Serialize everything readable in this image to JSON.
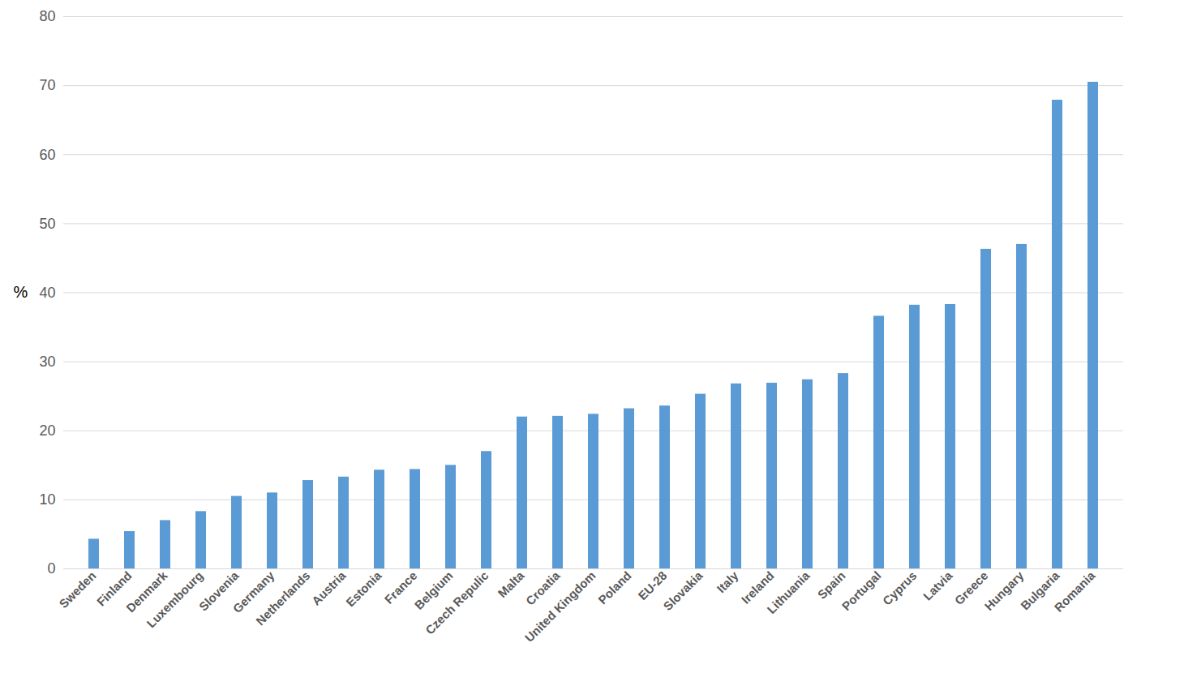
{
  "chart_data": {
    "type": "bar",
    "y_label": "%",
    "categories": [
      "Sweden",
      "Finland",
      "Denmark",
      "Luxembourg",
      "Slovenia",
      "Germany",
      "Netherlands",
      "Austria",
      "Estonia",
      "France",
      "Belgium",
      "Czech Repulic",
      "Malta",
      "Croatia",
      "United Kingdom",
      "Poland",
      "EU-28",
      "Slovakia",
      "Italy",
      "Ireland",
      "Lithuania",
      "Spain",
      "Portugal",
      "Cyprus",
      "Latvia",
      "Greece",
      "Hungary",
      "Bulgaria",
      "Romania"
    ],
    "values": [
      4.3,
      5.4,
      7.0,
      8.3,
      10.5,
      11.0,
      12.8,
      13.3,
      14.3,
      14.4,
      15.0,
      17.0,
      22.0,
      22.1,
      22.4,
      23.2,
      23.6,
      25.3,
      26.8,
      26.9,
      27.4,
      28.3,
      36.6,
      38.2,
      38.3,
      46.3,
      47.0,
      67.9,
      70.5
    ],
    "color": "#5b9bd5",
    "ylim": [
      0,
      80
    ],
    "yticks": [
      0,
      10,
      20,
      30,
      40,
      50,
      60,
      70,
      80
    ],
    "grid": true
  }
}
